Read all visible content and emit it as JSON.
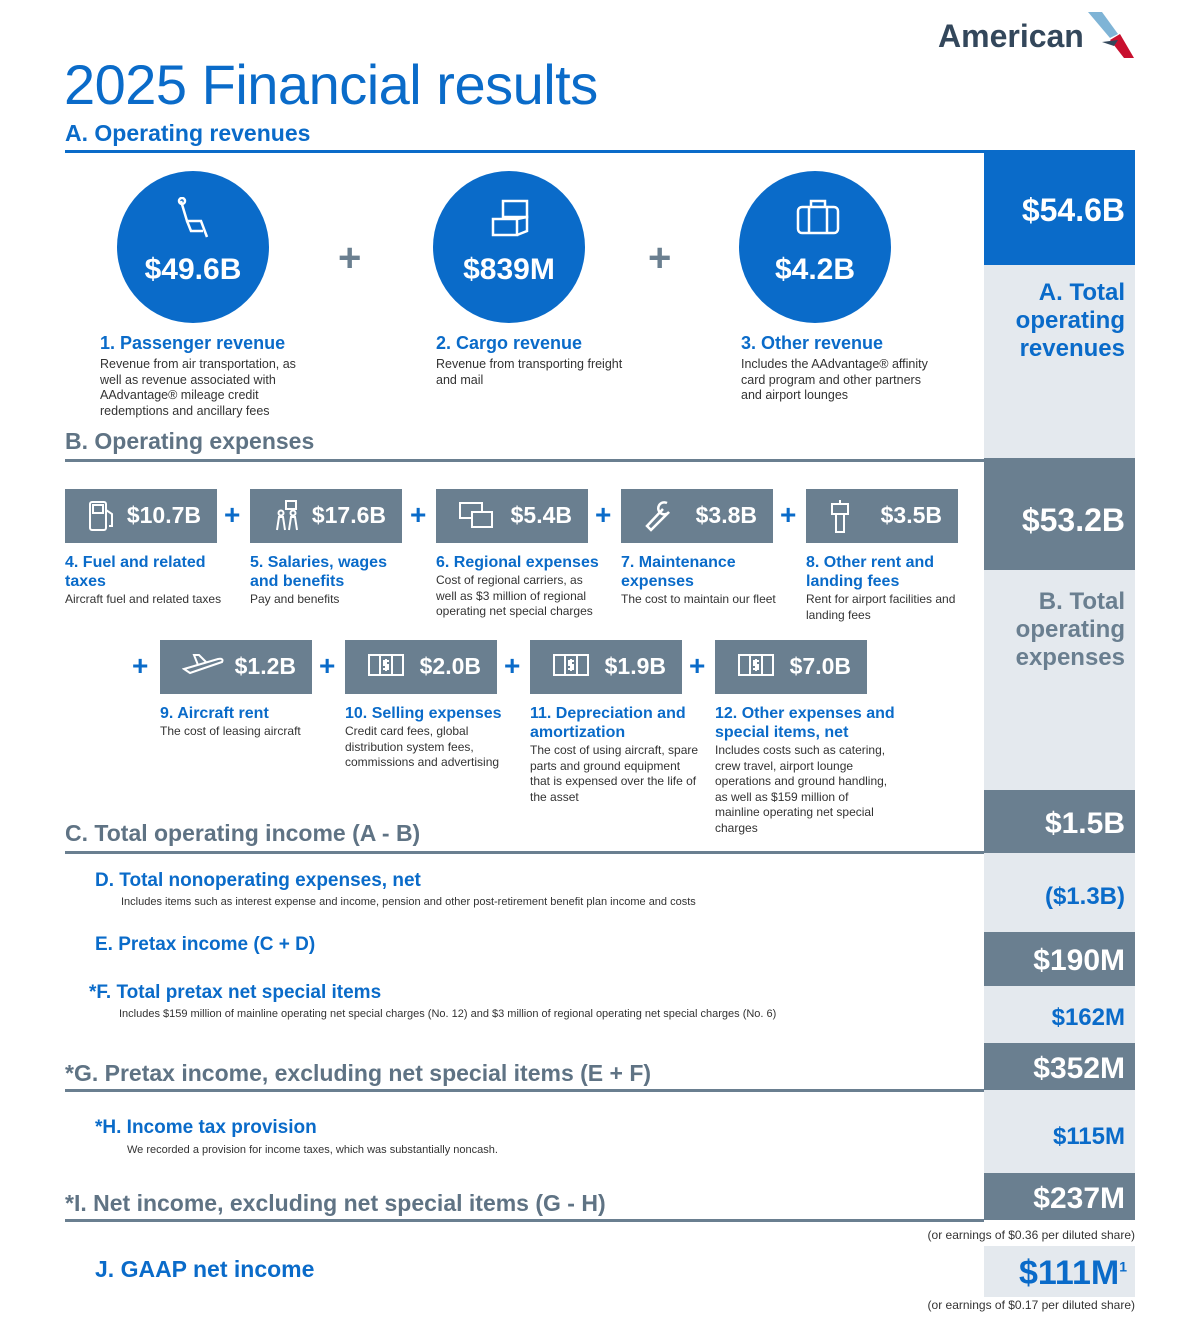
{
  "brand": {
    "name": "American"
  },
  "title": "2025 Financial results",
  "colors": {
    "blue": "#0a6bc9",
    "slate": "#6a7f90",
    "light": "#e4e9ee"
  },
  "section_a": {
    "heading": "A. Operating revenues",
    "total": "$54.6B",
    "total_label": "A. Total operating revenues",
    "items": [
      {
        "value": "$49.6B",
        "label": "1. Passenger revenue",
        "desc": "Revenue from air transportation, as well as revenue associated with AAdvantage® mileage credit redemptions and ancillary fees",
        "icon": "seat-icon"
      },
      {
        "value": "$839M",
        "label": "2. Cargo revenue",
        "desc": "Revenue from transporting freight and mail",
        "icon": "cargo-boxes-icon"
      },
      {
        "value": "$4.2B",
        "label": "3. Other revenue",
        "desc": "Includes the AAdvantage® affinity card program and other partners and airport lounges",
        "icon": "briefcase-icon"
      }
    ]
  },
  "section_b": {
    "heading": "B. Operating expenses",
    "total": "$53.2B",
    "total_label": "B. Total operating expenses",
    "items": [
      {
        "value": "$10.7B",
        "label": "4. Fuel and related taxes",
        "desc": "Aircraft fuel and related taxes",
        "icon": "fuel-pump-icon"
      },
      {
        "value": "$17.6B",
        "label": "5. Salaries, wages and benefits",
        "desc": "Pay and benefits",
        "icon": "people-icon"
      },
      {
        "value": "$5.4B",
        "label": "6. Regional expenses",
        "desc": "Cost of regional carriers, as well as $3 million of regional operating net special charges",
        "icon": "card-dollar-icon"
      },
      {
        "value": "$3.8B",
        "label": "7. Maintenance expenses",
        "desc": "The cost to maintain our fleet",
        "icon": "wrench-icon"
      },
      {
        "value": "$3.5B",
        "label": "8. Other rent and landing fees",
        "desc": "Rent for airport facilities and landing fees",
        "icon": "control-tower-icon"
      },
      {
        "value": "$1.2B",
        "label": "9. Aircraft rent",
        "desc": "The cost of leasing aircraft",
        "icon": "airplane-icon"
      },
      {
        "value": "$2.0B",
        "label": "10. Selling expenses",
        "desc": "Credit card fees, global distribution system fees, commissions and advertising",
        "icon": "dollar-bill-icon"
      },
      {
        "value": "$1.9B",
        "label": "11. Depreciation and amortization",
        "desc": "The cost of using aircraft, spare parts and ground equipment that is expensed over the life of the asset",
        "icon": "dollar-bill-icon"
      },
      {
        "value": "$7.0B",
        "label": "12. Other expenses and special items, net",
        "desc": "Includes costs such as catering, crew travel, airport lounge operations and ground handling, as well as $159 million of mainline operating net special charges",
        "icon": "dollar-bill-icon"
      }
    ]
  },
  "c": {
    "label": "C. Total operating income (A - B)",
    "value": "$1.5B"
  },
  "d": {
    "label": "D. Total nonoperating expenses, net",
    "desc": "Includes items such as interest expense and income, pension and other post-retirement benefit plan income and costs",
    "value": "($1.3B)"
  },
  "e": {
    "label": "E. Pretax income (C + D)",
    "value": "$190M"
  },
  "f": {
    "label": "*F. Total pretax net special items",
    "desc": "Includes $159 million of mainline operating net special charges (No. 12) and $3 million of regional operating net special charges (No. 6)",
    "value": "$162M"
  },
  "g": {
    "label": "*G. Pretax income, excluding net special items (E + F)",
    "value": "$352M"
  },
  "h": {
    "label": "*H. Income tax provision",
    "desc": "We recorded a provision for income taxes, which was substantially noncash.",
    "value": "$115M"
  },
  "i": {
    "label": "*I. Net income, excluding net special items (G - H)",
    "value": "$237M",
    "note": "(or earnings of $0.36 per diluted share)"
  },
  "j": {
    "label": "J. GAAP net income",
    "value": "$111M",
    "footnote": "1",
    "note": "(or earnings of $0.17 per diluted share)"
  },
  "plus": "+"
}
